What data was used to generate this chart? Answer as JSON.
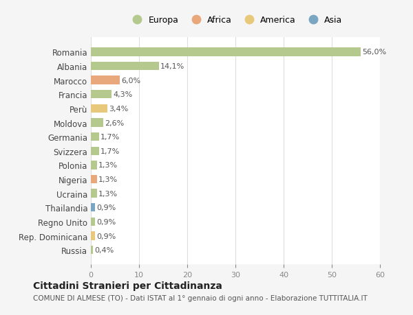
{
  "countries": [
    "Romania",
    "Albania",
    "Marocco",
    "Francia",
    "Perù",
    "Moldova",
    "Germania",
    "Svizzera",
    "Polonia",
    "Nigeria",
    "Ucraina",
    "Thailandia",
    "Regno Unito",
    "Rep. Dominicana",
    "Russia"
  ],
  "values": [
    56.0,
    14.1,
    6.0,
    4.3,
    3.4,
    2.6,
    1.7,
    1.7,
    1.3,
    1.3,
    1.3,
    0.9,
    0.9,
    0.9,
    0.4
  ],
  "labels": [
    "56,0%",
    "14,1%",
    "6,0%",
    "4,3%",
    "3,4%",
    "2,6%",
    "1,7%",
    "1,7%",
    "1,3%",
    "1,3%",
    "1,3%",
    "0,9%",
    "0,9%",
    "0,9%",
    "0,4%"
  ],
  "colors": [
    "#b5c98e",
    "#b5c98e",
    "#e8a87c",
    "#b5c98e",
    "#e8c97c",
    "#b5c98e",
    "#b5c98e",
    "#b5c98e",
    "#b5c98e",
    "#e8a87c",
    "#b5c98e",
    "#7aa6c2",
    "#b5c98e",
    "#e8c97c",
    "#b5c98e"
  ],
  "legend_labels": [
    "Europa",
    "Africa",
    "America",
    "Asia"
  ],
  "legend_colors": [
    "#b5c98e",
    "#e8a87c",
    "#e8c97c",
    "#7aa6c2"
  ],
  "title": "Cittadini Stranieri per Cittadinanza",
  "subtitle": "COMUNE DI ALMESE (TO) - Dati ISTAT al 1° gennaio di ogni anno - Elaborazione TUTTITALIA.IT",
  "xlim": [
    0,
    60
  ],
  "xticks": [
    0,
    10,
    20,
    30,
    40,
    50,
    60
  ],
  "bg_color": "#f5f5f5",
  "bar_bg_color": "#ffffff"
}
